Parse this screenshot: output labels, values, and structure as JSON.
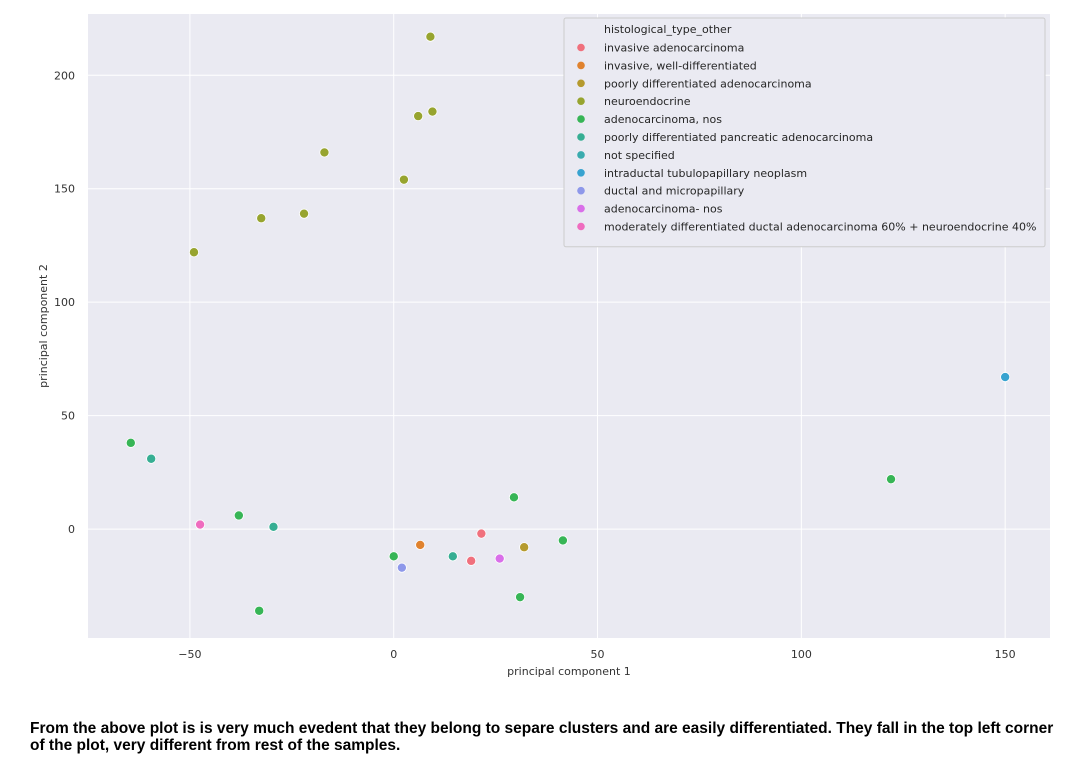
{
  "chart_data": {
    "type": "scatter",
    "title": "",
    "xlabel": "principal component 1",
    "ylabel": "principal component 2",
    "xlim": [
      -75,
      161
    ],
    "ylim": [
      -48,
      227
    ],
    "xticks": [
      -50,
      0,
      50,
      100,
      150
    ],
    "yticks": [
      0,
      50,
      100,
      150,
      200
    ],
    "grid": true,
    "legend_title": "histological_type_other",
    "legend_position": "top-right",
    "series": [
      {
        "name": "invasive adenocarcinoma",
        "color": "#f0707d",
        "points": [
          [
            19,
            -14
          ],
          [
            21.5,
            -2
          ]
        ]
      },
      {
        "name": "invasive, well-differentiated",
        "color": "#e0822e",
        "points": [
          [
            6.5,
            -7
          ]
        ]
      },
      {
        "name": "poorly differentiated adenocarcinoma",
        "color": "#b59a2e",
        "points": [
          [
            32,
            -8
          ]
        ]
      },
      {
        "name": "neuroendocrine",
        "color": "#97a42f",
        "points": [
          [
            9,
            217
          ],
          [
            6,
            182
          ],
          [
            9.5,
            184
          ],
          [
            -17,
            166
          ],
          [
            2.5,
            154
          ],
          [
            -32.5,
            137
          ],
          [
            -22,
            139
          ],
          [
            -49,
            122
          ]
        ]
      },
      {
        "name": "adenocarcinoma, nos",
        "color": "#37b556",
        "points": [
          [
            -64.5,
            38
          ],
          [
            -38,
            6
          ],
          [
            29.5,
            14
          ],
          [
            0,
            -12
          ],
          [
            41.5,
            -5
          ],
          [
            31,
            -30
          ],
          [
            -33,
            -36
          ],
          [
            122,
            22
          ]
        ]
      },
      {
        "name": "poorly differentiated pancreatic adenocarcinoma",
        "color": "#36ae93",
        "points": [
          [
            -59.5,
            31
          ],
          [
            -29.5,
            1
          ],
          [
            14.5,
            -12
          ]
        ]
      },
      {
        "name": "not specified",
        "color": "#3aabae",
        "points": []
      },
      {
        "name": "intraductal tubulopapillary neoplasm",
        "color": "#38a3d0",
        "points": [
          [
            150,
            67
          ]
        ]
      },
      {
        "name": "ductal and micropapillary",
        "color": "#8e98ea",
        "points": [
          [
            2,
            -17
          ]
        ]
      },
      {
        "name": "adenocarcinoma- nos",
        "color": "#d96fe9",
        "points": [
          [
            26,
            -13
          ]
        ]
      },
      {
        "name": "moderately differentiated ductal adenocarcinoma 60% + neuroendocrine 40%",
        "color": "#ef6cbf",
        "points": [
          [
            -47.5,
            2
          ]
        ]
      }
    ]
  },
  "caption": "From the above plot is is very much evedent that they belong to separe clusters and are easily differentiated. They fall in the top left corner of the plot, very different from rest of the samples."
}
